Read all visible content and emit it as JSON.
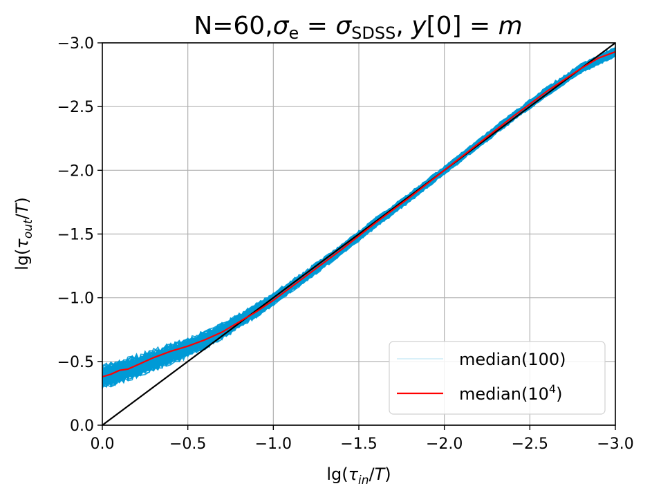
{
  "chart_data": {
    "type": "line",
    "title": {
      "prefix": "N=60,",
      "sigma": "σ",
      "sub_e": "e",
      "eq1": " = ",
      "sigma2": "σ",
      "sub_sdss": "SDSS",
      "comma": ", ",
      "y": "y",
      "bracket": "[0]",
      "eq2": " = ",
      "m": "m"
    },
    "xlabel": {
      "pre": "lg(",
      "tau": "τ",
      "sub": "in",
      "slash": "/",
      "T": "T",
      "post": ")"
    },
    "ylabel": {
      "pre": "lg(",
      "tau": "τ",
      "sub": "out",
      "slash": "/",
      "T": "T",
      "post": ")"
    },
    "xlim": [
      0.0,
      -3.0
    ],
    "ylim": [
      0.0,
      -3.0
    ],
    "xticks": [
      0.0,
      -0.5,
      -1.0,
      -1.5,
      -2.0,
      -2.5,
      -3.0
    ],
    "yticks": [
      0.0,
      -0.5,
      -1.0,
      -1.5,
      -2.0,
      -2.5,
      -3.0
    ],
    "xtick_labels": [
      "0.0",
      "−0.5",
      "−1.0",
      "−1.5",
      "−2.0",
      "−2.5",
      "−3.0"
    ],
    "ytick_labels": [
      "0.0",
      "−0.5",
      "−1.0",
      "−1.5",
      "−2.0",
      "−2.5",
      "−3.0"
    ],
    "grid": true,
    "legend_position": "bottom-right",
    "series": [
      {
        "name": "median(100)",
        "color": "#009ad6",
        "style": "band of 100 noisy realizations",
        "band_center": {
          "x": [
            0.0,
            -0.1,
            -0.2,
            -0.3,
            -0.4,
            -0.5,
            -0.6,
            -0.7,
            -0.8,
            -0.9,
            -1.0,
            -1.2,
            -1.4,
            -1.6,
            -1.8,
            -2.0,
            -2.2,
            -2.4,
            -2.6,
            -2.8,
            -3.0
          ],
          "y": [
            -0.38,
            -0.42,
            -0.46,
            -0.51,
            -0.56,
            -0.61,
            -0.67,
            -0.74,
            -0.82,
            -0.9,
            -0.99,
            -1.18,
            -1.38,
            -1.59,
            -1.79,
            -2.0,
            -2.21,
            -2.42,
            -2.62,
            -2.8,
            -2.93
          ]
        },
        "band_halfwidth": {
          "x": [
            0.0,
            -0.5,
            -1.0,
            -2.0,
            -3.0
          ],
          "y": [
            0.1,
            0.08,
            0.05,
            0.035,
            0.04
          ]
        }
      },
      {
        "name": "median(10^4)",
        "legend_label_base": "median(10",
        "legend_label_sup": "4",
        "legend_label_end": ")",
        "color": "#ff0000",
        "x": [
          0.0,
          -0.05,
          -0.1,
          -0.15,
          -0.2,
          -0.3,
          -0.4,
          -0.5,
          -0.6,
          -0.7,
          -0.8,
          -0.9,
          -1.0,
          -1.2,
          -1.4,
          -1.6,
          -1.8,
          -2.0,
          -2.2,
          -2.4,
          -2.6,
          -2.8,
          -2.9,
          -3.0
        ],
        "y": [
          -0.38,
          -0.4,
          -0.43,
          -0.44,
          -0.47,
          -0.53,
          -0.58,
          -0.62,
          -0.67,
          -0.73,
          -0.81,
          -0.89,
          -0.98,
          -1.18,
          -1.38,
          -1.59,
          -1.79,
          -2.0,
          -2.21,
          -2.42,
          -2.62,
          -2.8,
          -2.88,
          -2.93
        ]
      },
      {
        "name": "identity",
        "color": "#000000",
        "x": [
          0.0,
          -3.0
        ],
        "y": [
          0.0,
          -3.0
        ]
      }
    ]
  }
}
